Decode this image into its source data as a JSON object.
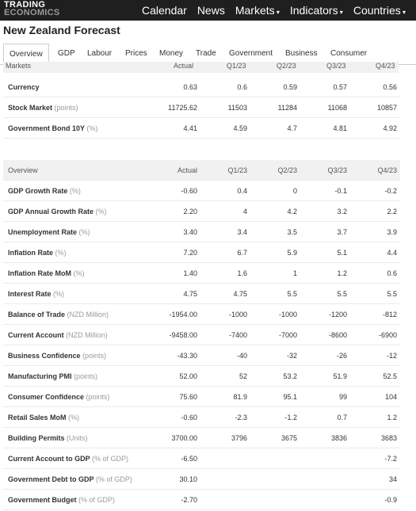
{
  "header": {
    "logo_line1": "TRADING",
    "logo_line2": "ECONOMICS",
    "nav": [
      "Calendar",
      "News",
      "Markets",
      "Indicators",
      "Countries"
    ]
  },
  "page_title": "New Zealand Forecast",
  "tabs": [
    "Overview",
    "GDP",
    "Labour",
    "Prices",
    "Money",
    "Trade",
    "Government",
    "Business",
    "Consumer"
  ],
  "markets": {
    "header": [
      "Markets",
      "Actual",
      "Q1/23",
      "Q2/23",
      "Q3/23",
      "Q4/23"
    ],
    "rows": [
      {
        "name": "Currency",
        "unit": "",
        "values": [
          "0.63",
          "0.6",
          "0.59",
          "0.57",
          "0.56"
        ]
      },
      {
        "name": "Stock Market",
        "unit": "(points)",
        "values": [
          "11725.62",
          "11503",
          "11284",
          "11068",
          "10857"
        ]
      },
      {
        "name": "Government Bond 10Y",
        "unit": "(%)",
        "values": [
          "4.41",
          "4.59",
          "4.7",
          "4.81",
          "4.92"
        ]
      }
    ]
  },
  "overview": {
    "header": [
      "Overview",
      "Actual",
      "Q1/23",
      "Q2/23",
      "Q3/23",
      "Q4/23"
    ],
    "rows": [
      {
        "name": "GDP Growth Rate",
        "unit": "(%)",
        "values": [
          "-0.60",
          "0.4",
          "0",
          "-0.1",
          "-0.2"
        ]
      },
      {
        "name": "GDP Annual Growth Rate",
        "unit": "(%)",
        "values": [
          "2.20",
          "4",
          "4.2",
          "3.2",
          "2.2"
        ]
      },
      {
        "name": "Unemployment Rate",
        "unit": "(%)",
        "values": [
          "3.40",
          "3.4",
          "3.5",
          "3.7",
          "3.9"
        ]
      },
      {
        "name": "Inflation Rate",
        "unit": "(%)",
        "values": [
          "7.20",
          "6.7",
          "5.9",
          "5.1",
          "4.4"
        ]
      },
      {
        "name": "Inflation Rate MoM",
        "unit": "(%)",
        "values": [
          "1.40",
          "1.6",
          "1",
          "1.2",
          "0.6"
        ]
      },
      {
        "name": "Interest Rate",
        "unit": "(%)",
        "values": [
          "4.75",
          "4.75",
          "5.5",
          "5.5",
          "5.5"
        ]
      },
      {
        "name": "Balance of Trade",
        "unit": "(NZD Million)",
        "values": [
          "-1954.00",
          "-1000",
          "-1000",
          "-1200",
          "-812"
        ]
      },
      {
        "name": "Current Account",
        "unit": "(NZD Million)",
        "values": [
          "-9458.00",
          "-7400",
          "-7000",
          "-8600",
          "-6900"
        ]
      },
      {
        "name": "Business Confidence",
        "unit": "(points)",
        "values": [
          "-43.30",
          "-40",
          "-32",
          "-26",
          "-12"
        ]
      },
      {
        "name": "Manufacturing PMI",
        "unit": "(points)",
        "values": [
          "52.00",
          "52",
          "53.2",
          "51.9",
          "52.5"
        ]
      },
      {
        "name": "Consumer Confidence",
        "unit": "(points)",
        "values": [
          "75.60",
          "81.9",
          "95.1",
          "99",
          "104"
        ]
      },
      {
        "name": "Retail Sales MoM",
        "unit": "(%)",
        "values": [
          "-0.60",
          "-2.3",
          "-1.2",
          "0.7",
          "1.2"
        ]
      },
      {
        "name": "Building Permits",
        "unit": "(Units)",
        "values": [
          "3700.00",
          "3796",
          "3675",
          "3836",
          "3683"
        ]
      },
      {
        "name": "Current Account to GDP",
        "unit": "(% of GDP)",
        "values": [
          "-6.50",
          "",
          "",
          "",
          "-7.2"
        ]
      },
      {
        "name": "Government Debt to GDP",
        "unit": "(% of GDP)",
        "values": [
          "30.10",
          "",
          "",
          "",
          "34"
        ]
      },
      {
        "name": "Government Budget",
        "unit": "(% of GDP)",
        "values": [
          "-2.70",
          "",
          "",
          "",
          "-0.9"
        ]
      }
    ]
  }
}
